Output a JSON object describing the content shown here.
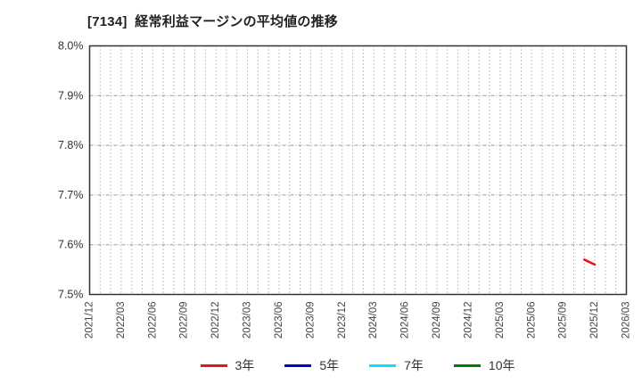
{
  "page": {
    "background": "#ffffff"
  },
  "chart_data": {
    "type": "line",
    "title": "[7134]  経常利益マージンの平均値の推移",
    "xlabel": "",
    "ylabel": "",
    "ylim": [
      7.5,
      8.0
    ],
    "x_start": "2021/12",
    "x_end": "2026/03",
    "x_tick_labels": [
      "2021/12",
      "2022/03",
      "2022/06",
      "2022/09",
      "2022/12",
      "2023/03",
      "2023/06",
      "2023/09",
      "2023/12",
      "2024/03",
      "2024/06",
      "2024/09",
      "2024/12",
      "2025/03",
      "2025/06",
      "2025/09",
      "2025/12",
      "2026/03"
    ],
    "y_ticks": [
      {
        "label": "7.5%",
        "value": 7.5
      },
      {
        "label": "7.6%",
        "value": 7.6
      },
      {
        "label": "7.7%",
        "value": 7.7
      },
      {
        "label": "7.8%",
        "value": 7.8
      },
      {
        "label": "7.9%",
        "value": 7.9
      },
      {
        "label": "8.0%",
        "value": 8.0
      }
    ],
    "grid": {
      "horizontal_style": "dashed",
      "horizontal_color": "#999999",
      "vertical_style": "dotted-monthly",
      "vertical_color": "#8a8a8a",
      "border_color": "#333333"
    },
    "legend_position": "bottom",
    "series": [
      {
        "name": "3年",
        "color": "#ee1111",
        "points": [
          [
            "2025/11",
            7.57
          ],
          [
            "2025/12",
            7.56
          ]
        ]
      },
      {
        "name": "5年",
        "color": "#0000dd",
        "points": []
      },
      {
        "name": "7年",
        "color": "#00e5ff",
        "points": []
      },
      {
        "name": "10年",
        "color": "#008000",
        "points": []
      }
    ]
  }
}
